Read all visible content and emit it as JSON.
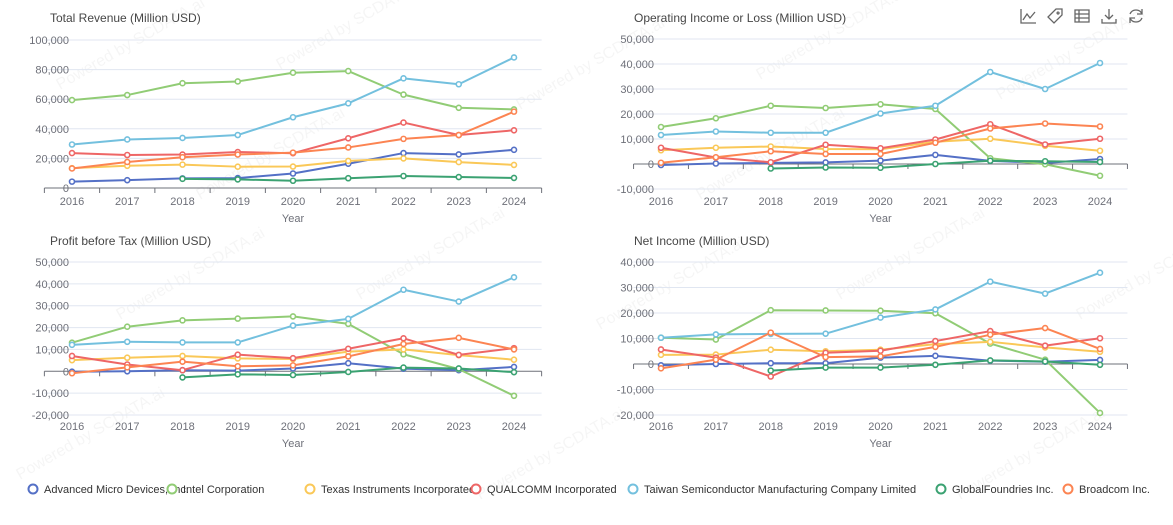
{
  "watermark": "Powered by SCDATA.ai",
  "toolbox": [
    {
      "icon": "line-chart-icon",
      "label": "Switch to line chart"
    },
    {
      "icon": "tag-icon",
      "label": "Toggle labels"
    },
    {
      "icon": "table-icon",
      "label": "Data view"
    },
    {
      "icon": "download-icon",
      "label": "Save as image"
    },
    {
      "icon": "refresh-icon",
      "label": "Restore"
    }
  ],
  "legend": [
    {
      "name": "Advanced Micro Devices, Inc.",
      "color": "#5470c6"
    },
    {
      "name": "Intel Corporation",
      "color": "#91cc75"
    },
    {
      "name": "Texas Instruments Incorporated",
      "color": "#fac858"
    },
    {
      "name": "QUALCOMM Incorporated",
      "color": "#ee6666"
    },
    {
      "name": "Taiwan Semiconductor Manufacturing Company Limited",
      "color": "#73c0de"
    },
    {
      "name": "GlobalFoundries Inc.",
      "color": "#3ba272"
    },
    {
      "name": "Broadcom Inc.",
      "color": "#fc8452"
    }
  ],
  "chart_data": [
    {
      "type": "line",
      "title": "Total Revenue (Million USD)",
      "xlabel": "Year",
      "categories": [
        "2016",
        "2017",
        "2018",
        "2019",
        "2020",
        "2021",
        "2022",
        "2023",
        "2024"
      ],
      "ylim": [
        0,
        100000
      ],
      "yticks": [
        0,
        20000,
        40000,
        60000,
        80000,
        100000
      ],
      "grid": true,
      "series": [
        {
          "name": "Advanced Micro Devices, Inc.",
          "values": [
            4300,
            5300,
            6500,
            6700,
            9800,
            16400,
            23600,
            22700,
            25800
          ]
        },
        {
          "name": "Intel Corporation",
          "values": [
            59400,
            62800,
            70800,
            72000,
            77900,
            79000,
            63100,
            54200,
            53100
          ]
        },
        {
          "name": "Texas Instruments Incorporated",
          "values": [
            13400,
            15000,
            15800,
            14400,
            14500,
            18300,
            20000,
            17500,
            15600
          ]
        },
        {
          "name": "QUALCOMM Incorporated",
          "values": [
            23600,
            22300,
            22600,
            24300,
            23500,
            33600,
            44200,
            35800,
            39000
          ]
        },
        {
          "name": "Taiwan Semiconductor Manufacturing Company Limited",
          "values": [
            29400,
            32800,
            33800,
            35800,
            47800,
            57200,
            74100,
            70100,
            88200
          ]
        },
        {
          "name": "GlobalFoundries Inc.",
          "values": [
            null,
            null,
            6200,
            5800,
            4900,
            6600,
            8100,
            7400,
            6800
          ]
        },
        {
          "name": "Broadcom Inc.",
          "values": [
            13200,
            17600,
            20800,
            22600,
            23900,
            27400,
            33200,
            35800,
            51600
          ]
        }
      ]
    },
    {
      "type": "line",
      "title": "Operating Income or Loss (Million USD)",
      "xlabel": "Year",
      "categories": [
        "2016",
        "2017",
        "2018",
        "2019",
        "2020",
        "2021",
        "2022",
        "2023",
        "2024"
      ],
      "ylim": [
        -10000,
        50000
      ],
      "yticks": [
        -10000,
        0,
        10000,
        20000,
        30000,
        40000,
        50000
      ],
      "grid": true,
      "series": [
        {
          "name": "Advanced Micro Devices, Inc.",
          "values": [
            -400,
            200,
            450,
            630,
            1370,
            3650,
            1260,
            400,
            2000
          ]
        },
        {
          "name": "Intel Corporation",
          "values": [
            14800,
            18300,
            23300,
            22400,
            23900,
            22000,
            2300,
            -100,
            -4700
          ]
        },
        {
          "name": "Texas Instruments Incorporated",
          "values": [
            5500,
            6500,
            7000,
            6000,
            5900,
            8900,
            10100,
            7300,
            5300
          ]
        },
        {
          "name": "QUALCOMM Incorporated",
          "values": [
            6500,
            2600,
            700,
            7700,
            6300,
            9800,
            15900,
            7800,
            10100
          ]
        },
        {
          "name": "Taiwan Semiconductor Manufacturing Company Limited",
          "values": [
            11600,
            13000,
            12500,
            12500,
            20200,
            23300,
            36800,
            30000,
            40400
          ]
        },
        {
          "name": "GlobalFoundries Inc.",
          "values": [
            null,
            null,
            -1800,
            -1400,
            -1500,
            0,
            1300,
            1100,
            800
          ]
        },
        {
          "name": "Broadcom Inc.",
          "values": [
            500,
            2700,
            5100,
            4000,
            4000,
            8500,
            14200,
            16200,
            15000
          ]
        }
      ]
    },
    {
      "type": "line",
      "title": "Profit before Tax (Million USD)",
      "xlabel": "Year",
      "categories": [
        "2016",
        "2017",
        "2018",
        "2019",
        "2020",
        "2021",
        "2022",
        "2023",
        "2024"
      ],
      "ylim": [
        -20000,
        50000
      ],
      "yticks": [
        -20000,
        -10000,
        0,
        10000,
        20000,
        30000,
        40000,
        50000
      ],
      "grid": true,
      "series": [
        {
          "name": "Advanced Micro Devices, Inc.",
          "values": [
            -200,
            0,
            500,
            300,
            1300,
            3700,
            1200,
            500,
            2000
          ]
        },
        {
          "name": "Intel Corporation",
          "values": [
            13100,
            20400,
            23300,
            24100,
            25100,
            21700,
            7800,
            1000,
            -11200
          ]
        },
        {
          "name": "Texas Instruments Incorporated",
          "values": [
            5100,
            6200,
            7000,
            5900,
            5600,
            9000,
            10000,
            7400,
            5300
          ]
        },
        {
          "name": "QUALCOMM Incorporated",
          "values": [
            7000,
            3100,
            500,
            7600,
            6000,
            10300,
            15100,
            7500,
            10600
          ]
        },
        {
          "name": "Taiwan Semiconductor Manufacturing Company Limited",
          "values": [
            12100,
            13500,
            13200,
            13200,
            20900,
            24000,
            37300,
            31900,
            43000
          ]
        },
        {
          "name": "GlobalFoundries Inc.",
          "values": [
            null,
            null,
            -2800,
            -1400,
            -1700,
            -300,
            1700,
            1300,
            -400
          ]
        },
        {
          "name": "Broadcom Inc.",
          "values": [
            -900,
            1800,
            4400,
            2300,
            2700,
            6800,
            12500,
            15300,
            10000
          ]
        }
      ]
    },
    {
      "type": "line",
      "title": "Net Income (Million USD)",
      "xlabel": "Year",
      "categories": [
        "2016",
        "2017",
        "2018",
        "2019",
        "2020",
        "2021",
        "2022",
        "2023",
        "2024"
      ],
      "ylim": [
        -20000,
        40000
      ],
      "yticks": [
        -20000,
        -10000,
        0,
        10000,
        20000,
        30000,
        40000
      ],
      "grid": true,
      "series": [
        {
          "name": "Advanced Micro Devices, Inc.",
          "values": [
            -500,
            0,
            300,
            300,
            2500,
            3200,
            1300,
            900,
            1600
          ]
        },
        {
          "name": "Intel Corporation",
          "values": [
            10300,
            9600,
            21100,
            21000,
            20900,
            19900,
            8000,
            1700,
            -19200
          ]
        },
        {
          "name": "Texas Instruments Incorporated",
          "values": [
            3600,
            3700,
            5600,
            5000,
            5600,
            7800,
            8700,
            6500,
            4800
          ]
        },
        {
          "name": "QUALCOMM Incorporated",
          "values": [
            5700,
            2500,
            -4900,
            4400,
            5200,
            9000,
            12900,
            7200,
            10100
          ]
        },
        {
          "name": "Taiwan Semiconductor Manufacturing Company Limited",
          "values": [
            10300,
            11600,
            11800,
            11900,
            18200,
            21400,
            32300,
            27600,
            35800
          ]
        },
        {
          "name": "GlobalFoundries Inc.",
          "values": [
            null,
            null,
            -2600,
            -1400,
            -1400,
            -300,
            1400,
            1000,
            -300
          ]
        },
        {
          "name": "Broadcom Inc.",
          "values": [
            -1700,
            1700,
            12300,
            2700,
            3000,
            6700,
            11500,
            14100,
            5900
          ]
        }
      ]
    }
  ]
}
